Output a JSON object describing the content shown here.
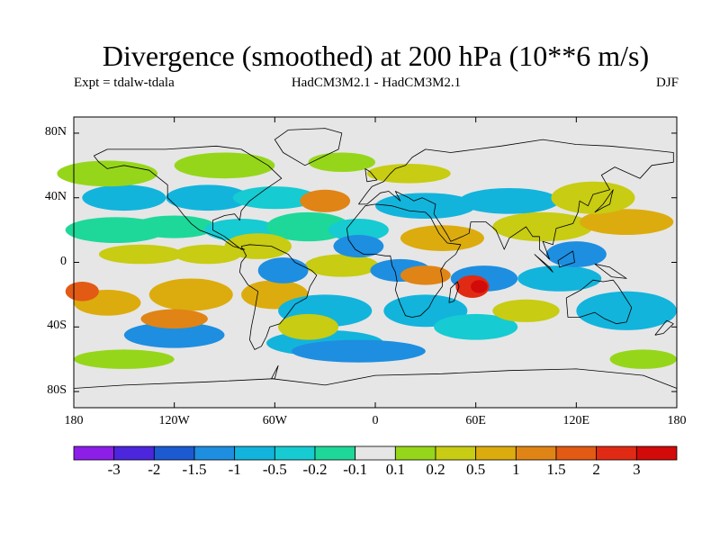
{
  "title": "Divergence (smoothed) at 200 hPa (10**6 m/s)",
  "expt_label": "Expt = tdalw-tdala",
  "model_label": "HadCM3M2.1 - HadCM3M2.1",
  "season_label": "DJF",
  "map": {
    "projection": "equirectangular",
    "lon_range": [
      -180,
      180
    ],
    "lat_range": [
      -90,
      90
    ],
    "lat_ticks": [
      {
        "value": 80,
        "label": "80N"
      },
      {
        "value": 40,
        "label": "40N"
      },
      {
        "value": 0,
        "label": "0"
      },
      {
        "value": -40,
        "label": "40S"
      },
      {
        "value": -80,
        "label": "80S"
      }
    ],
    "lon_ticks": [
      {
        "value": -180,
        "label": "180"
      },
      {
        "value": -120,
        "label": "120W"
      },
      {
        "value": -60,
        "label": "60W"
      },
      {
        "value": 0,
        "label": "0"
      },
      {
        "value": 60,
        "label": "60E"
      },
      {
        "value": 120,
        "label": "120E"
      },
      {
        "value": 180,
        "label": "180"
      }
    ]
  },
  "colorbar": {
    "levels": [
      "-3",
      "-2",
      "-1.5",
      "-1",
      "-0.5",
      "-0.2",
      "-0.1",
      "0.1",
      "0.2",
      "0.5",
      "1",
      "1.5",
      "2",
      "3"
    ],
    "colors": [
      "#8c1ee8",
      "#4b26dc",
      "#1c5ad2",
      "#1e8ee0",
      "#12b4dc",
      "#16cbd2",
      "#1ed89a",
      "#e6e6e6",
      "#96d61a",
      "#c8cc12",
      "#dcac0e",
      "#e08416",
      "#e25a14",
      "#e12a14",
      "#d20a0a"
    ]
  }
}
